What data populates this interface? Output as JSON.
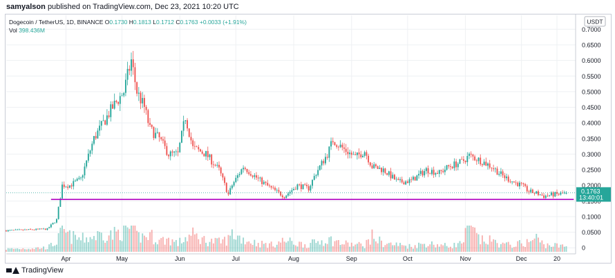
{
  "publisher": {
    "user": "samyalson",
    "text": "published on TradingView.com, Dec 23, 2021 10:20 UTC"
  },
  "legend": {
    "symbol": "Dogecoin / TetherUS, 1D, BINANCE",
    "open_label": "O",
    "open": "0.1730",
    "high_label": "H",
    "high": "0.1813",
    "low_label": "L",
    "low": "0.1712",
    "close_label": "C",
    "close": "0.1763",
    "change": "+0.0033 (+1.91%)",
    "vol_label": "Vol",
    "vol": "398.436M"
  },
  "currency_badge": "USDT",
  "price_badge": {
    "price": "0.1763",
    "countdown": "13:40:01"
  },
  "colors": {
    "up": "#26a69a",
    "down": "#ef5350",
    "support": "#b000c0",
    "grid": "#eef0f3",
    "axis_text": "#131722"
  },
  "footer": {
    "brand": "TradingView",
    "logo_icon": "tradingview-logo-icon"
  },
  "chart_data": {
    "type": "candlestick",
    "y_axis_ticks": [
      0,
      0.05,
      0.1,
      0.15,
      0.2,
      0.25,
      0.3,
      0.35,
      0.4,
      0.45,
      0.5,
      0.55,
      0.6,
      0.65,
      0.7
    ],
    "y_axis_labels": [
      "0",
      "0.0500",
      "0.1000",
      "0.1500",
      "0.2000",
      "0.2500",
      "0.3000",
      "0.3500",
      "0.4000",
      "0.4500",
      "0.5000",
      "0.5500",
      "0.6000",
      "0.6500",
      "0.7000"
    ],
    "ylim": [
      -0.015,
      0.745
    ],
    "x_axis_labels": [
      "Apr",
      "May",
      "Jun",
      "Jul",
      "Aug",
      "Sep",
      "Oct",
      "Nov",
      "Dec",
      "20"
    ],
    "x_axis_label_days": [
      0,
      30,
      61,
      91,
      122,
      153,
      183,
      214,
      244,
      263
    ],
    "x_range_days": [
      -32,
      273
    ],
    "support_level": {
      "value": 0.155,
      "from_day": -8,
      "to_day": 272
    },
    "last_price": 0.1763,
    "anchors": [
      [
        -32,
        0.055,
        0.1
      ],
      [
        -10,
        0.06,
        0.15
      ],
      [
        -5,
        0.09,
        0.35
      ],
      [
        -2,
        0.2,
        0.75
      ],
      [
        2,
        0.2,
        0.55
      ],
      [
        8,
        0.22,
        0.45
      ],
      [
        15,
        0.35,
        0.55
      ],
      [
        20,
        0.4,
        0.65
      ],
      [
        25,
        0.45,
        0.6
      ],
      [
        31,
        0.5,
        0.8
      ],
      [
        35,
        0.6,
        0.85
      ],
      [
        38,
        0.5,
        0.55
      ],
      [
        42,
        0.45,
        0.55
      ],
      [
        45,
        0.38,
        0.6
      ],
      [
        50,
        0.35,
        0.4
      ],
      [
        55,
        0.3,
        0.45
      ],
      [
        60,
        0.3,
        0.3
      ],
      [
        64,
        0.42,
        0.5
      ],
      [
        68,
        0.32,
        0.6
      ],
      [
        75,
        0.3,
        0.4
      ],
      [
        82,
        0.25,
        0.35
      ],
      [
        87,
        0.17,
        0.45
      ],
      [
        89,
        0.2,
        0.65
      ],
      [
        95,
        0.26,
        0.45
      ],
      [
        103,
        0.22,
        0.3
      ],
      [
        110,
        0.19,
        0.25
      ],
      [
        117,
        0.165,
        0.4
      ],
      [
        124,
        0.2,
        0.3
      ],
      [
        130,
        0.19,
        0.25
      ],
      [
        134,
        0.24,
        0.35
      ],
      [
        140,
        0.3,
        0.45
      ],
      [
        143,
        0.345,
        0.4
      ],
      [
        148,
        0.32,
        0.3
      ],
      [
        155,
        0.29,
        0.25
      ],
      [
        160,
        0.31,
        0.25
      ],
      [
        164,
        0.26,
        0.55
      ],
      [
        170,
        0.25,
        0.3
      ],
      [
        178,
        0.21,
        0.25
      ],
      [
        185,
        0.215,
        0.2
      ],
      [
        193,
        0.25,
        0.3
      ],
      [
        200,
        0.24,
        0.25
      ],
      [
        205,
        0.26,
        0.2
      ],
      [
        212,
        0.275,
        0.3
      ],
      [
        216,
        0.295,
        0.9
      ],
      [
        222,
        0.28,
        0.4
      ],
      [
        228,
        0.26,
        0.4
      ],
      [
        234,
        0.23,
        0.25
      ],
      [
        240,
        0.21,
        0.25
      ],
      [
        244,
        0.2,
        0.3
      ],
      [
        248,
        0.18,
        0.35
      ],
      [
        252,
        0.175,
        0.5
      ],
      [
        256,
        0.165,
        0.25
      ],
      [
        260,
        0.17,
        0.25
      ],
      [
        265,
        0.172,
        0.2
      ],
      [
        268,
        0.1763,
        0.2
      ]
    ]
  }
}
